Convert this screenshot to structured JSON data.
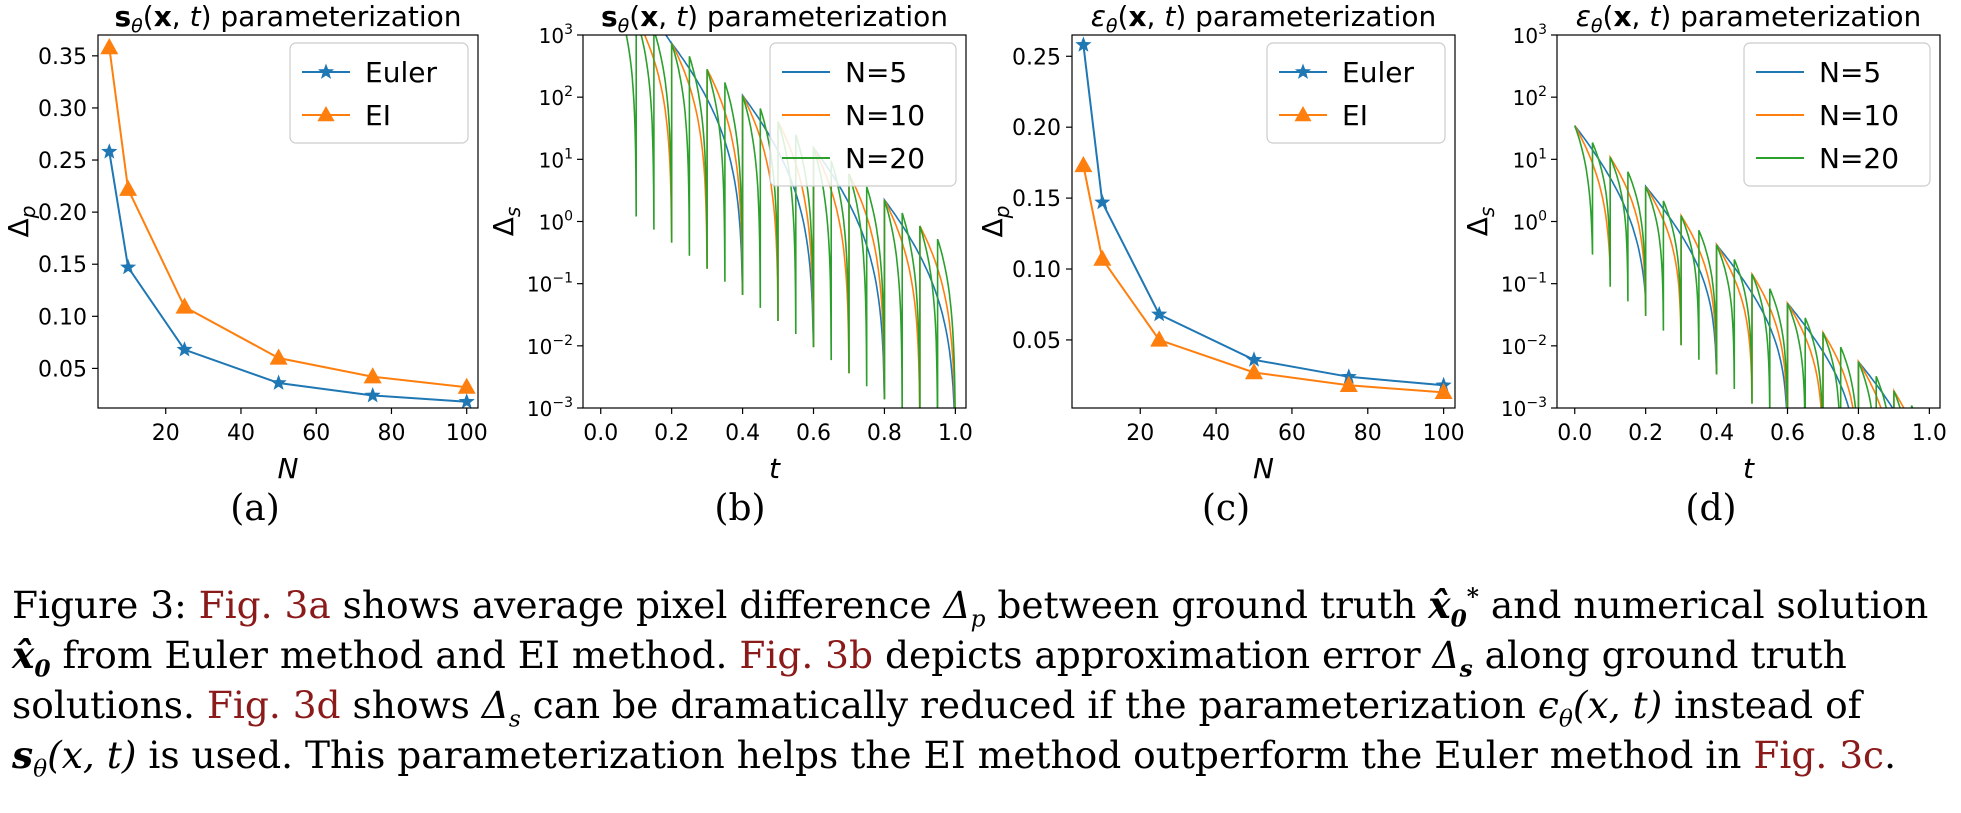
{
  "colors": {
    "blue": "#1f77b4",
    "orange": "#ff7f0e",
    "green": "#2ca02c"
  },
  "subfigure_labels": [
    "(a)",
    "(b)",
    "(c)",
    "(d)"
  ],
  "caption": {
    "figure_label": "Figure 3:",
    "ref_3a": "Fig. 3a",
    "ref_3b": "Fig. 3b",
    "ref_3d": "Fig. 3d",
    "ref_3c": "Fig. 3c",
    "t1": " shows average pixel difference ",
    "t2": " between ground truth ",
    "t3": " and numerical solution",
    "t4": " from Euler method and EI method. ",
    "t5": " depicts approximation error ",
    "t6": " along ground truth",
    "t7": "solutions. ",
    "t8": " shows ",
    "t9": " can be dramatically reduced if the parameterization ",
    "t10": " instead of",
    "t11": " is used. This parameterization helps the EI method outperform the Euler method in ",
    "t12": ".",
    "sym_delta_p": "Δ",
    "sym_p": "p",
    "sym_xhat": "x̂",
    "sym_0": "0",
    "sym_star": "*",
    "sym_s": "s",
    "sym_eps": "ϵ",
    "sym_theta": "θ",
    "sym_arg": "(x, t)",
    "sym_sbold": "s"
  },
  "chart_data": [
    {
      "type": "line",
      "title": "sθ(x, t) parameterization",
      "xlabel": "N",
      "ylabel": "Δp",
      "xlim": [
        2,
        103
      ],
      "ylim": [
        0.012,
        0.37
      ],
      "xticks": [
        20,
        40,
        60,
        80,
        100
      ],
      "yticks": [
        0.05,
        0.1,
        0.15,
        0.2,
        0.25,
        0.3,
        0.35
      ],
      "ytick_labels": [
        "0.05",
        "0.10",
        "0.15",
        "0.20",
        "0.25",
        "0.30",
        "0.35"
      ],
      "legend": "top-right",
      "x": [
        5,
        10,
        25,
        50,
        75,
        100
      ],
      "series": [
        {
          "name": "Euler",
          "color": "#1f77b4",
          "marker": "star",
          "values": [
            0.258,
            0.147,
            0.068,
            0.036,
            0.024,
            0.018
          ]
        },
        {
          "name": "EI",
          "color": "#ff7f0e",
          "marker": "triangle",
          "values": [
            0.358,
            0.222,
            0.109,
            0.06,
            0.042,
            0.032
          ]
        }
      ]
    },
    {
      "type": "line",
      "title": "sθ(x, t) parameterization",
      "xlabel": "t",
      "ylabel": "Δs",
      "xlim": [
        -0.05,
        1.03
      ],
      "ylog": true,
      "ylim_exp": [
        -3,
        3
      ],
      "xticks": [
        0.0,
        0.2,
        0.4,
        0.6,
        0.8,
        1.0
      ],
      "xtick_labels": [
        "0.0",
        "0.2",
        "0.4",
        "0.6",
        "0.8",
        "1.0"
      ],
      "ytick_exps": [
        -3,
        -2,
        -1,
        0,
        1,
        2,
        3
      ],
      "legend": "top-right",
      "model": {
        "a": 3.7,
        "b": -4.2,
        "c": 2.0,
        "tau0": 0.008
      },
      "series": [
        {
          "name": "N=5",
          "color": "#1f77b4",
          "n": 5
        },
        {
          "name": "N=10",
          "color": "#ff7f0e",
          "n": 10
        },
        {
          "name": "N=20",
          "color": "#2ca02c",
          "n": 20
        }
      ]
    },
    {
      "type": "line",
      "title": "εθ(x, t) parameterization",
      "xlabel": "N",
      "ylabel": "Δp",
      "xlim": [
        2,
        103
      ],
      "ylim": [
        0.002,
        0.265
      ],
      "xticks": [
        20,
        40,
        60,
        80,
        100
      ],
      "yticks": [
        0.05,
        0.1,
        0.15,
        0.2,
        0.25
      ],
      "ytick_labels": [
        "0.05",
        "0.10",
        "0.15",
        "0.20",
        "0.25"
      ],
      "legend": "top-right",
      "x": [
        5,
        10,
        25,
        50,
        75,
        100
      ],
      "series": [
        {
          "name": "Euler",
          "color": "#1f77b4",
          "marker": "star",
          "values": [
            0.258,
            0.147,
            0.068,
            0.036,
            0.024,
            0.018
          ]
        },
        {
          "name": "EI",
          "color": "#ff7f0e",
          "marker": "triangle",
          "values": [
            0.173,
            0.107,
            0.05,
            0.027,
            0.018,
            0.013
          ]
        }
      ]
    },
    {
      "type": "line",
      "title": "εθ(x, t) parameterization",
      "xlabel": "t",
      "ylabel": "Δs",
      "xlim": [
        -0.05,
        1.03
      ],
      "ylog": true,
      "ylim_exp": [
        -3,
        3
      ],
      "xticks": [
        0.0,
        0.2,
        0.4,
        0.6,
        0.8,
        1.0
      ],
      "xtick_labels": [
        "0.0",
        "0.2",
        "0.4",
        "0.6",
        "0.8",
        "1.0"
      ],
      "ytick_exps": [
        -3,
        -2,
        -1,
        0,
        1,
        2,
        3
      ],
      "legend": "top-right",
      "model": {
        "a": 1.5,
        "b": -4.7,
        "c": 1.3,
        "tau0": 0.0
      },
      "series": [
        {
          "name": "N=5",
          "color": "#1f77b4",
          "n": 5
        },
        {
          "name": "N=10",
          "color": "#ff7f0e",
          "n": 10
        },
        {
          "name": "N=20",
          "color": "#2ca02c",
          "n": 20
        }
      ]
    }
  ]
}
